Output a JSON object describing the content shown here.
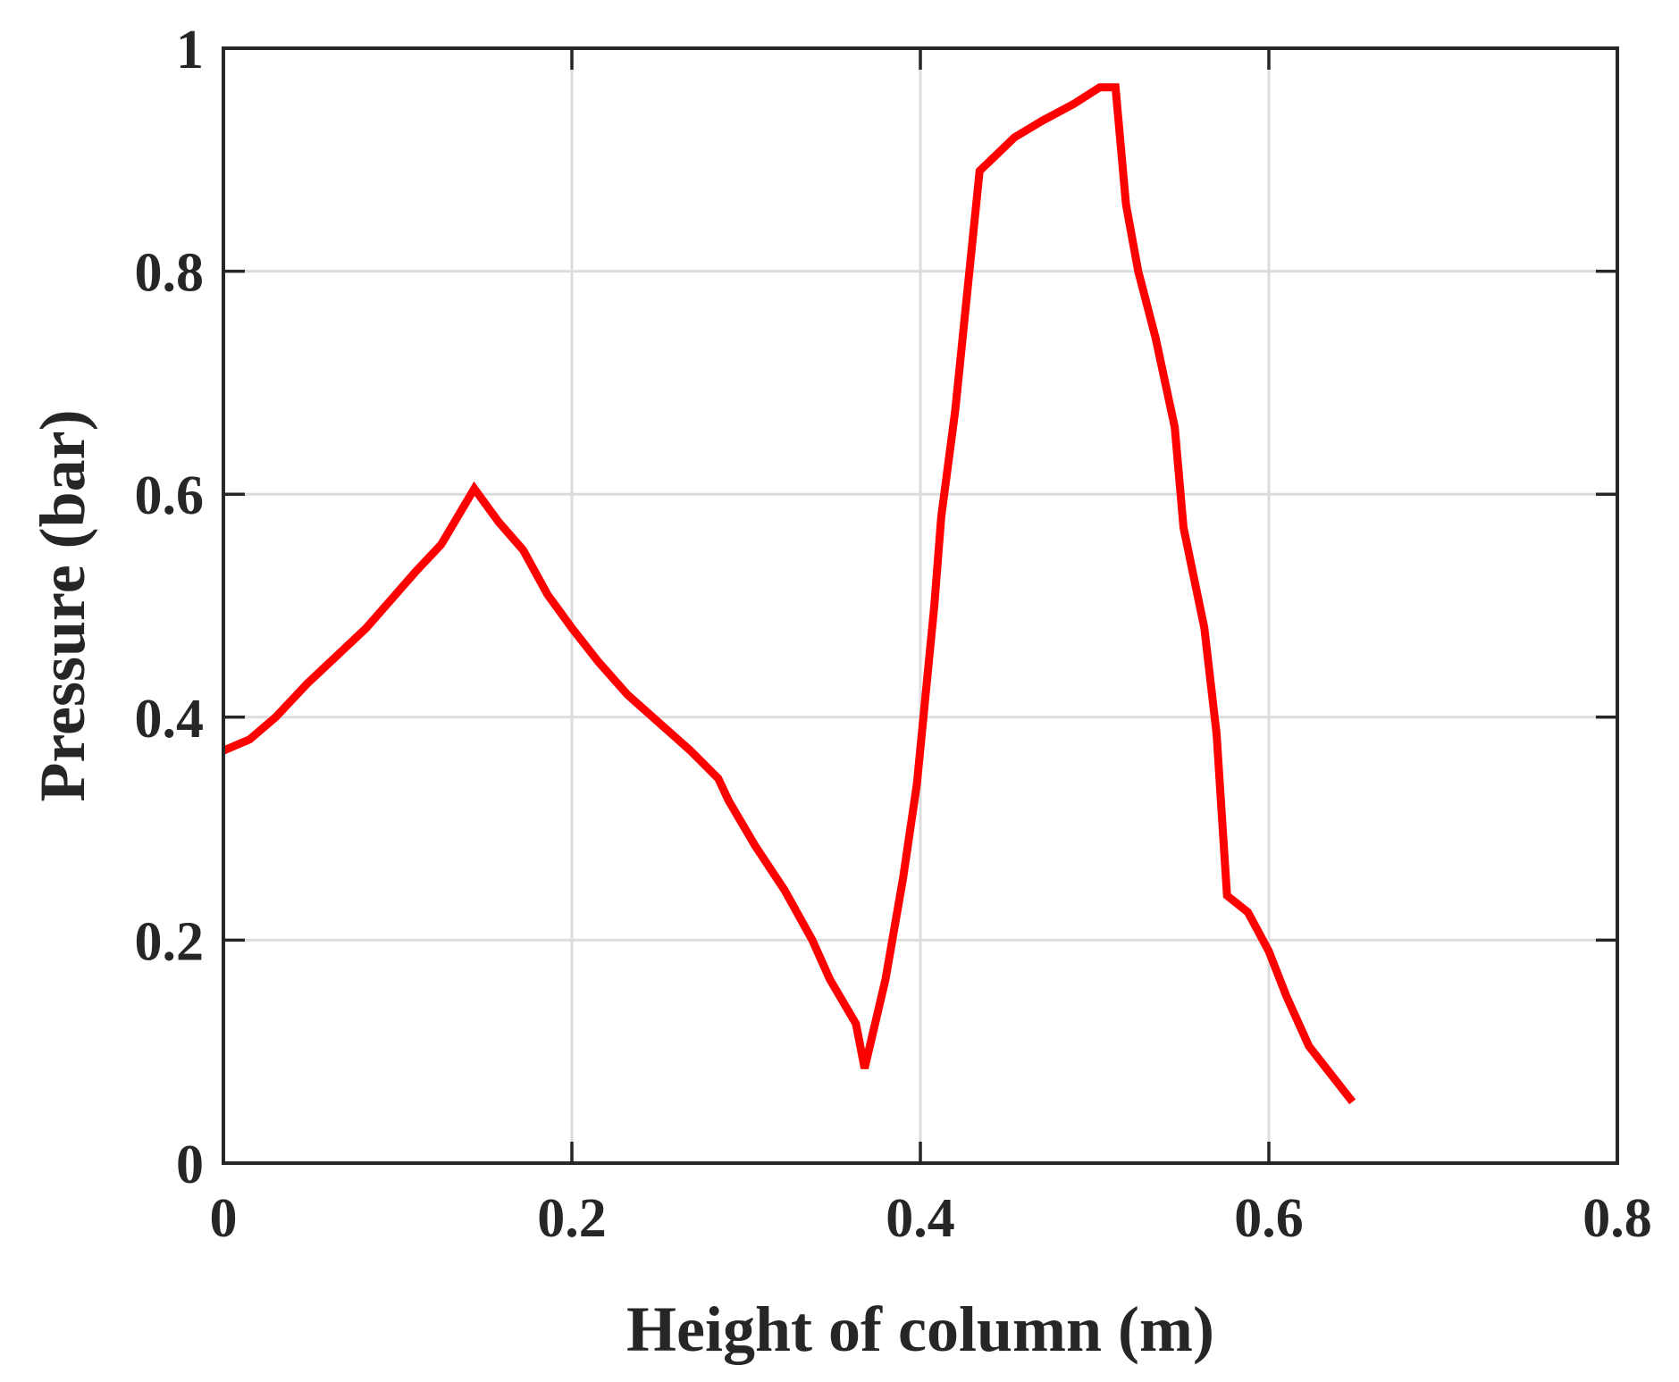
{
  "chart_data": {
    "type": "line",
    "title": "",
    "xlabel": "Height of column (m)",
    "ylabel": "Pressure (bar)",
    "xlim": [
      0,
      0.8
    ],
    "ylim": [
      0,
      1
    ],
    "xticks": [
      0,
      0.2,
      0.4,
      0.6,
      0.8
    ],
    "yticks": [
      0,
      0.2,
      0.4,
      0.6,
      0.8,
      1
    ],
    "xtick_labels": [
      "0",
      "0.2",
      "0.4",
      "0.6",
      "0.8"
    ],
    "ytick_labels": [
      "0",
      "0.2",
      "0.4",
      "0.6",
      "0.8",
      "1"
    ],
    "grid": true,
    "legend": null,
    "series": [
      {
        "color": "#ff0000",
        "x": [
          0,
          0.015,
          0.03,
          0.048,
          0.065,
          0.082,
          0.096,
          0.11,
          0.125,
          0.144,
          0.158,
          0.172,
          0.186,
          0.2,
          0.215,
          0.232,
          0.25,
          0.268,
          0.284,
          0.29,
          0.305,
          0.322,
          0.338,
          0.348,
          0.363,
          0.368,
          0.38,
          0.39,
          0.398,
          0.408,
          0.412,
          0.42,
          0.434,
          0.444,
          0.454,
          0.47,
          0.488,
          0.503,
          0.512,
          0.518,
          0.525,
          0.535,
          0.546,
          0.551,
          0.563,
          0.57,
          0.576,
          0.588,
          0.6,
          0.61,
          0.623,
          0.648
        ],
        "y": [
          0.37,
          0.38,
          0.4,
          0.43,
          0.455,
          0.48,
          0.505,
          0.53,
          0.555,
          0.605,
          0.575,
          0.55,
          0.51,
          0.48,
          0.45,
          0.42,
          0.395,
          0.37,
          0.345,
          0.325,
          0.285,
          0.245,
          0.2,
          0.165,
          0.125,
          0.085,
          0.165,
          0.255,
          0.34,
          0.5,
          0.58,
          0.675,
          0.89,
          0.905,
          0.92,
          0.935,
          0.95,
          0.965,
          0.965,
          0.86,
          0.8,
          0.74,
          0.66,
          0.57,
          0.48,
          0.385,
          0.24,
          0.225,
          0.19,
          0.15,
          0.105,
          0.055
        ]
      }
    ]
  }
}
